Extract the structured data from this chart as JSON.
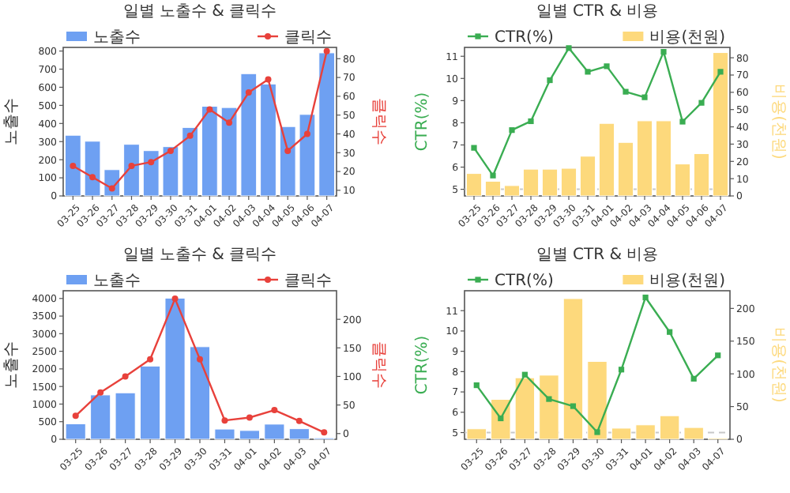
{
  "chart_data": [
    {
      "type": "bar",
      "title": "일별 노출수 & 클릭수",
      "ylabel": "노출수",
      "y2label": "클릭수",
      "legend": "top",
      "categories": [
        "03-25",
        "03-26",
        "03-27",
        "03-28",
        "03-29",
        "03-30",
        "03-31",
        "04-01",
        "04-02",
        "04-03",
        "04-04",
        "04-05",
        "04-06",
        "04-07"
      ],
      "series": [
        {
          "name": "노출수",
          "type": "bar",
          "color": "#6ea0f2",
          "values": [
            335,
            302,
            145,
            285,
            250,
            272,
            378,
            495,
            488,
            675,
            618,
            383,
            450,
            790
          ]
        },
        {
          "name": "클릭수",
          "type": "line",
          "axis": "y2",
          "marker": "circle",
          "color": "#e8413b",
          "values": [
            23,
            17,
            11,
            23,
            25,
            31,
            39,
            53,
            46,
            62,
            69,
            31,
            40,
            84
          ]
        }
      ],
      "ylim": [
        0,
        820
      ],
      "yticks": [
        0,
        100,
        200,
        300,
        400,
        500,
        600,
        700,
        800
      ],
      "y2lim": [
        7,
        86
      ],
      "y2ticks": [
        10,
        20,
        30,
        40,
        50,
        60,
        70,
        80
      ]
    },
    {
      "type": "line",
      "title": "일별 CTR & 비용",
      "ylabel": "CTR(%)",
      "y2label": "비용(천원)",
      "legend": "top",
      "categories": [
        "03-25",
        "03-26",
        "03-27",
        "03-28",
        "03-29",
        "03-30",
        "03-31",
        "04-01",
        "04-02",
        "04-03",
        "04-04",
        "04-05",
        "04-06",
        "04-07"
      ],
      "series": [
        {
          "name": "CTR(%)",
          "type": "line",
          "marker": "square",
          "color": "#3aad52",
          "values": [
            6.87,
            5.62,
            7.67,
            8.07,
            9.92,
            11.37,
            10.3,
            10.55,
            9.4,
            9.15,
            11.2,
            8.05,
            8.9,
            10.3
          ]
        },
        {
          "name": "비용(천원)",
          "type": "bar",
          "axis": "y2",
          "color": "#fdd97c",
          "values": [
            13,
            8.5,
            6,
            15.5,
            15.5,
            16,
            23,
            42,
            31,
            43.5,
            43.5,
            18.5,
            24.5,
            83
          ]
        }
      ],
      "ylim": [
        4.7,
        11.4
      ],
      "yticks": [
        5,
        6,
        7,
        8,
        9,
        10,
        11
      ],
      "y2lim": [
        0,
        86
      ],
      "y2ticks": [
        0,
        10,
        20,
        30,
        40,
        50,
        60,
        70,
        80
      ],
      "ref_lines": [
        {
          "axis": "y",
          "value": 5,
          "color": "#c8c8c8",
          "line_style": "dashed"
        }
      ]
    },
    {
      "type": "bar",
      "title": "일별 노출수 & 클릭수",
      "ylabel": "노출수",
      "y2label": "클릭수",
      "legend": "top",
      "categories": [
        "03-25",
        "03-26",
        "03-27",
        "03-28",
        "03-29",
        "03-30",
        "03-31",
        "04-01",
        "04-02",
        "04-03",
        "04-07"
      ],
      "series": [
        {
          "name": "노출수",
          "type": "bar",
          "color": "#6ea0f2",
          "values": [
            440,
            1260,
            1320,
            2080,
            4010,
            2630,
            290,
            250,
            430,
            300,
            40
          ]
        },
        {
          "name": "클릭수",
          "type": "line",
          "axis": "y2",
          "marker": "circle",
          "color": "#e8413b",
          "values": [
            31,
            72,
            100,
            130,
            236,
            130,
            23,
            28,
            41,
            22,
            2
          ]
        }
      ],
      "ylim": [
        0,
        4220
      ],
      "yticks": [
        0,
        500,
        1000,
        1500,
        2000,
        2500,
        3000,
        3500,
        4000
      ],
      "y2lim": [
        -10,
        250
      ],
      "y2ticks": [
        0,
        50,
        100,
        150,
        200
      ]
    },
    {
      "type": "line",
      "title": "일별 CTR & 비용",
      "ylabel": "CTR(%)",
      "y2label": "비용(천원)",
      "legend": "top",
      "categories": [
        "03-25",
        "03-26",
        "03-27",
        "03-28",
        "03-29",
        "03-30",
        "03-31",
        "04-01",
        "04-02",
        "04-03",
        "04-07"
      ],
      "series": [
        {
          "name": "CTR(%)",
          "type": "line",
          "marker": "square",
          "color": "#3aad52",
          "values": [
            7.33,
            5.7,
            7.85,
            6.65,
            6.3,
            5.02,
            8.1,
            11.65,
            9.95,
            7.65,
            8.8
          ]
        },
        {
          "name": "비용(천원)",
          "type": "bar",
          "axis": "y2",
          "color": "#fdd97c",
          "values": [
            16,
            61,
            94,
            98,
            215,
            119,
            17,
            22,
            36,
            18,
            2
          ]
        }
      ],
      "ylim": [
        4.67,
        11.98
      ],
      "yticks": [
        5,
        6,
        7,
        8,
        9,
        10,
        11
      ],
      "y2lim": [
        0,
        227
      ],
      "y2ticks": [
        0,
        50,
        100,
        150,
        200
      ],
      "ref_lines": [
        {
          "axis": "y",
          "value": 5,
          "color": "#c8c8c8",
          "line_style": "dashed"
        }
      ]
    }
  ]
}
